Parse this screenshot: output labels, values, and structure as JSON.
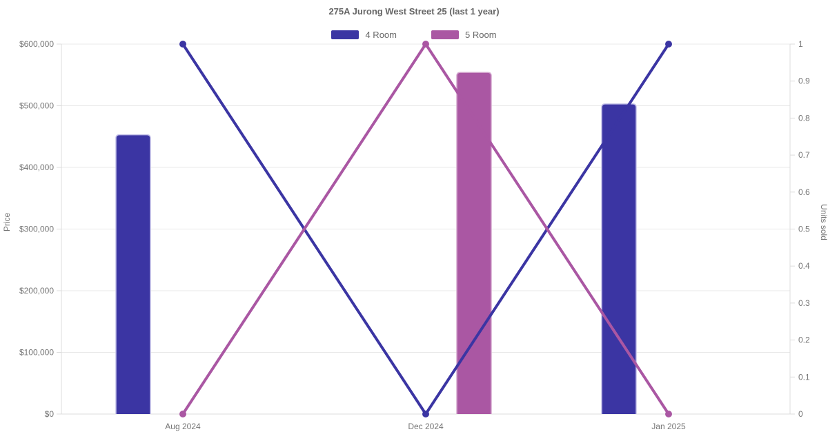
{
  "title": "275A Jurong West Street 25 (last 1 year)",
  "legend": [
    {
      "label": "4 Room",
      "color": "#3b35a3"
    },
    {
      "label": "5 Room",
      "color": "#aa57a3"
    }
  ],
  "colors": {
    "grid": "#e8e8e8",
    "axis": "#dcdcdc",
    "tick_text": "#757575",
    "title_text": "#666666",
    "background": "#ffffff"
  },
  "chart_data": {
    "type": "bar",
    "subtype": "combo-bar-line-dual-axis",
    "title": "275A Jurong West Street 25 (last 1 year)",
    "categories": [
      "Aug 2024",
      "Dec 2024",
      "Jan 2025"
    ],
    "series": [
      {
        "name": "4 Room",
        "kind": "bar",
        "axis": "left",
        "color": "#3b35a3",
        "border_color": "#c3c0e8",
        "values": [
          453000,
          null,
          503000
        ]
      },
      {
        "name": "5 Room",
        "kind": "bar",
        "axis": "left",
        "color": "#aa57a3",
        "border_color": "#d5abd0",
        "values": [
          null,
          554000,
          null
        ]
      },
      {
        "name": "4 Room",
        "kind": "line",
        "axis": "right",
        "color": "#3b35a3",
        "values": [
          1,
          0,
          1
        ]
      },
      {
        "name": "5 Room",
        "kind": "line",
        "axis": "right",
        "color": "#aa57a3",
        "values": [
          0,
          1,
          0
        ]
      }
    ],
    "ylabel_left": "Price",
    "ylabel_right": "Units sold",
    "ylim_left": [
      0,
      600000
    ],
    "ylim_right": [
      0,
      1
    ],
    "yticks_left": [
      {
        "value": 0,
        "label": "$0"
      },
      {
        "value": 100000,
        "label": "$100,000"
      },
      {
        "value": 200000,
        "label": "$200,000"
      },
      {
        "value": 300000,
        "label": "$300,000"
      },
      {
        "value": 400000,
        "label": "$400,000"
      },
      {
        "value": 500000,
        "label": "$500,000"
      },
      {
        "value": 600000,
        "label": "$600,000"
      }
    ],
    "yticks_right": [
      {
        "value": 0,
        "label": "0"
      },
      {
        "value": 0.1,
        "label": "0.1"
      },
      {
        "value": 0.2,
        "label": "0.2"
      },
      {
        "value": 0.3,
        "label": "0.3"
      },
      {
        "value": 0.4,
        "label": "0.4"
      },
      {
        "value": 0.5,
        "label": "0.5"
      },
      {
        "value": 0.6,
        "label": "0.6"
      },
      {
        "value": 0.7,
        "label": "0.7"
      },
      {
        "value": 0.8,
        "label": "0.8"
      },
      {
        "value": 0.9,
        "label": "0.9"
      },
      {
        "value": 1,
        "label": "1"
      }
    ],
    "grid": "horizontal",
    "legend_position": "top"
  }
}
